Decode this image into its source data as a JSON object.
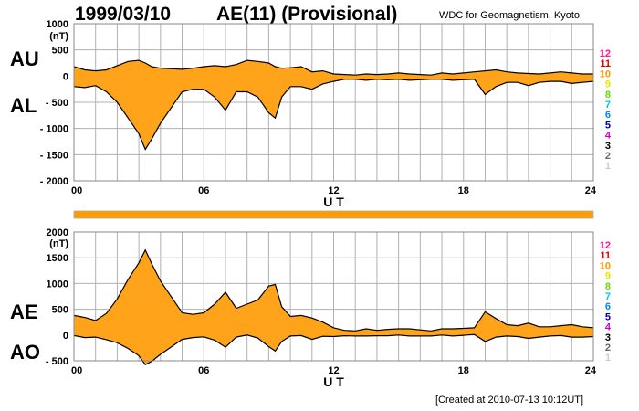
{
  "header": {
    "date": "1999/03/10",
    "title": "AE(11) (Provisional)",
    "source": "WDC for Geomagnetism, Kyoto"
  },
  "footer": {
    "created": "[Created at 2010-07-13 10:12UT]"
  },
  "colors": {
    "fill": "#ffa31a",
    "line": "#000000",
    "grid": "#b0b0b0",
    "bar": "#ff9c00"
  },
  "chart_data": [
    {
      "type": "area",
      "series_labels": [
        "AU",
        "AL"
      ],
      "unit_label": "(nT)",
      "x": [
        0,
        0.5,
        1,
        1.5,
        2,
        2.5,
        3,
        3.3,
        3.6,
        4,
        4.5,
        5,
        5.5,
        6,
        6.5,
        7,
        7.5,
        8,
        8.5,
        9,
        9.3,
        9.6,
        10,
        10.5,
        11,
        11.5,
        12,
        12.5,
        13,
        13.5,
        14,
        14.5,
        15,
        15.5,
        16,
        16.5,
        17,
        17.5,
        18,
        18.5,
        19,
        19.5,
        20,
        20.5,
        21,
        21.5,
        22,
        22.5,
        23,
        23.5,
        24
      ],
      "au": [
        180,
        120,
        100,
        120,
        200,
        280,
        300,
        250,
        180,
        150,
        140,
        130,
        150,
        180,
        200,
        180,
        220,
        300,
        280,
        250,
        180,
        150,
        160,
        180,
        80,
        100,
        40,
        30,
        20,
        40,
        30,
        40,
        60,
        40,
        30,
        20,
        60,
        40,
        60,
        80,
        100,
        120,
        80,
        60,
        50,
        40,
        60,
        80,
        60,
        40,
        40
      ],
      "al": [
        -200,
        -220,
        -180,
        -300,
        -500,
        -800,
        -1100,
        -1400,
        -1200,
        -900,
        -600,
        -300,
        -250,
        -250,
        -400,
        -650,
        -300,
        -300,
        -400,
        -700,
        -800,
        -400,
        -200,
        -200,
        -250,
        -150,
        -100,
        -60,
        -60,
        -80,
        -60,
        -70,
        -60,
        -80,
        -70,
        -60,
        -60,
        -80,
        -70,
        -60,
        -350,
        -200,
        -120,
        -120,
        -180,
        -120,
        -100,
        -100,
        -140,
        -120,
        -100
      ],
      "xlabel": "U T",
      "xticks": [
        "00",
        "06",
        "12",
        "18",
        "24"
      ],
      "xlim": [
        0,
        24
      ],
      "yticks": [
        1000,
        500,
        0,
        -500,
        -1000,
        -1500,
        -2000
      ],
      "ytick_labels": [
        "1000",
        "500",
        "0",
        "- 500",
        "- 1000",
        "- 1500",
        "- 2000"
      ],
      "ylim": [
        -2000,
        1000
      ],
      "grid": true,
      "station_count_labels": [
        "12",
        "11",
        "10",
        "9",
        "8",
        "7",
        "6",
        "5",
        "4",
        "3",
        "2",
        "1"
      ],
      "station_count_colors": [
        "#ff1493",
        "#e00000",
        "#ff9900",
        "#e6e600",
        "#66dd00",
        "#00cccc",
        "#0088ff",
        "#0000cc",
        "#cc00cc",
        "#000000",
        "#666666",
        "#cccccc"
      ]
    },
    {
      "type": "area",
      "series_labels": [
        "AE",
        "AO"
      ],
      "unit_label": "(nT)",
      "x": [
        0,
        0.5,
        1,
        1.5,
        2,
        2.5,
        3,
        3.3,
        3.6,
        4,
        4.5,
        5,
        5.5,
        6,
        6.5,
        7,
        7.5,
        8,
        8.5,
        9,
        9.3,
        9.6,
        10,
        10.5,
        11,
        11.5,
        12,
        12.5,
        13,
        13.5,
        14,
        14.5,
        15,
        15.5,
        16,
        16.5,
        17,
        17.5,
        18,
        18.5,
        19,
        19.5,
        20,
        20.5,
        21,
        21.5,
        22,
        22.5,
        23,
        23.5,
        24
      ],
      "ae": [
        380,
        340,
        280,
        420,
        700,
        1080,
        1400,
        1650,
        1380,
        1050,
        740,
        430,
        400,
        430,
        600,
        830,
        520,
        600,
        680,
        950,
        980,
        550,
        360,
        380,
        330,
        250,
        140,
        90,
        80,
        120,
        90,
        110,
        120,
        120,
        100,
        80,
        120,
        120,
        130,
        140,
        450,
        320,
        200,
        180,
        230,
        160,
        160,
        180,
        200,
        160,
        140
      ],
      "ao": [
        -10,
        -50,
        -40,
        -90,
        -150,
        -260,
        -400,
        -575,
        -510,
        -375,
        -230,
        -85,
        -50,
        -35,
        -100,
        -235,
        -40,
        0,
        -60,
        -225,
        -310,
        -125,
        -20,
        -10,
        -85,
        -25,
        -30,
        -15,
        -20,
        -20,
        -15,
        -15,
        0,
        -20,
        -20,
        -20,
        0,
        -20,
        -5,
        10,
        -125,
        -40,
        -20,
        -30,
        -65,
        -40,
        -20,
        -10,
        -40,
        -40,
        -30
      ],
      "xlabel": "U T",
      "xticks": [
        "00",
        "06",
        "12",
        "18",
        "24"
      ],
      "xlim": [
        0,
        24
      ],
      "yticks": [
        2000,
        1500,
        1000,
        500,
        0,
        -500
      ],
      "ytick_labels": [
        "2000",
        "1500",
        "1000",
        "500",
        "0",
        "- 500"
      ],
      "ylim": [
        -500,
        2000
      ],
      "grid": true,
      "station_count_labels": [
        "12",
        "11",
        "10",
        "9",
        "8",
        "7",
        "6",
        "5",
        "4",
        "3",
        "2",
        "1"
      ],
      "station_count_colors": [
        "#ff1493",
        "#e00000",
        "#ff9900",
        "#e6e600",
        "#66dd00",
        "#00cccc",
        "#0088ff",
        "#0000cc",
        "#cc00cc",
        "#000000",
        "#666666",
        "#cccccc"
      ]
    }
  ]
}
